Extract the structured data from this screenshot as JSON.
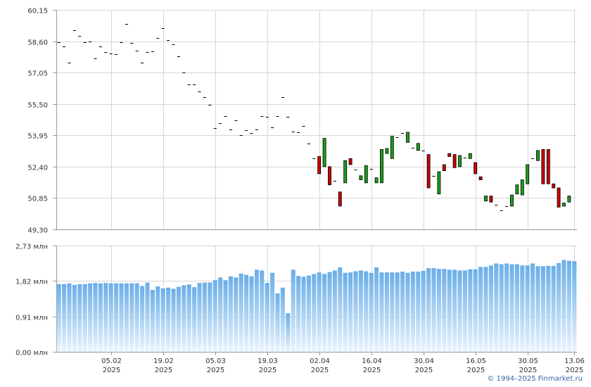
{
  "copyright": "© 1994–2025 Finmarket.ru",
  "chart_data": [
    {
      "type": "candlestick",
      "panel": "price",
      "title": "",
      "ylim": [
        49.3,
        60.15
      ],
      "y_ticks": [
        "60,15",
        "58,60",
        "57,05",
        "55,50",
        "53,95",
        "52,40",
        "50,85",
        "49,30"
      ],
      "y_tick_values": [
        60.15,
        58.6,
        57.05,
        55.5,
        53.95,
        52.4,
        50.85,
        49.3
      ],
      "grid": true,
      "colors": {
        "up": "#1a9e1a",
        "down": "#cc0000",
        "flat": "#000000"
      },
      "candles": [
        {
          "o": 58.55,
          "c": 58.55
        },
        {
          "o": 58.35,
          "c": 58.35
        },
        {
          "o": 57.55,
          "c": 57.55
        },
        {
          "o": 59.15,
          "c": 59.15
        },
        {
          "o": 58.85,
          "c": 58.85
        },
        {
          "o": 58.55,
          "c": 58.55
        },
        {
          "o": 58.6,
          "c": 58.6
        },
        {
          "o": 57.75,
          "c": 57.75
        },
        {
          "o": 58.35,
          "c": 58.35
        },
        {
          "o": 58.05,
          "c": 58.05
        },
        {
          "o": 58.0,
          "c": 58.0
        },
        {
          "o": 57.95,
          "c": 57.95
        },
        {
          "o": 58.55,
          "c": 58.55
        },
        {
          "o": 59.45,
          "c": 59.45
        },
        {
          "o": 58.5,
          "c": 58.5
        },
        {
          "o": 58.15,
          "c": 58.15
        },
        {
          "o": 57.55,
          "c": 57.55
        },
        {
          "o": 58.05,
          "c": 58.05
        },
        {
          "o": 58.1,
          "c": 58.1
        },
        {
          "o": 58.75,
          "c": 58.75
        },
        {
          "o": 59.25,
          "c": 59.25
        },
        {
          "o": 58.65,
          "c": 58.65
        },
        {
          "o": 58.45,
          "c": 58.45
        },
        {
          "o": 57.85,
          "c": 57.85
        },
        {
          "o": 57.05,
          "c": 57.05
        },
        {
          "o": 56.45,
          "c": 56.45
        },
        {
          "o": 56.45,
          "c": 56.45
        },
        {
          "o": 56.1,
          "c": 56.1
        },
        {
          "o": 55.85,
          "c": 55.85
        },
        {
          "o": 55.45,
          "c": 55.45
        },
        {
          "o": 54.3,
          "c": 54.3
        },
        {
          "o": 54.55,
          "c": 54.55
        },
        {
          "o": 54.9,
          "c": 54.9
        },
        {
          "o": 54.25,
          "c": 54.25
        },
        {
          "o": 54.7,
          "c": 54.7
        },
        {
          "o": 53.95,
          "c": 53.95
        },
        {
          "o": 54.2,
          "c": 54.2
        },
        {
          "o": 54.05,
          "c": 54.05
        },
        {
          "o": 54.25,
          "c": 54.25
        },
        {
          "o": 54.9,
          "c": 54.9
        },
        {
          "o": 54.85,
          "c": 54.85
        },
        {
          "o": 54.35,
          "c": 54.35
        },
        {
          "o": 54.9,
          "c": 54.9
        },
        {
          "o": 55.85,
          "c": 55.85
        },
        {
          "o": 54.85,
          "c": 54.85
        },
        {
          "o": 54.15,
          "c": 54.15
        },
        {
          "o": 54.1,
          "c": 54.1
        },
        {
          "o": 54.4,
          "c": 54.4
        },
        {
          "o": 53.55,
          "c": 53.55
        },
        {
          "o": 52.8,
          "c": 52.8
        },
        {
          "o": 52.9,
          "c": 52.05
        },
        {
          "o": 52.4,
          "c": 53.8
        },
        {
          "o": 52.4,
          "c": 51.5
        },
        {
          "o": 51.7,
          "c": 51.7
        },
        {
          "o": 51.15,
          "c": 50.45
        },
        {
          "o": 51.6,
          "c": 52.7
        },
        {
          "o": 52.8,
          "c": 52.5
        },
        {
          "o": 52.25,
          "c": 52.25
        },
        {
          "o": 51.75,
          "c": 51.95
        },
        {
          "o": 51.6,
          "c": 52.45
        },
        {
          "o": 52.3,
          "c": 52.3
        },
        {
          "o": 51.6,
          "c": 51.85
        },
        {
          "o": 51.6,
          "c": 53.25
        },
        {
          "o": 53.05,
          "c": 53.3
        },
        {
          "o": 52.8,
          "c": 53.9
        },
        {
          "o": 53.85,
          "c": 53.85
        },
        {
          "o": 54.05,
          "c": 54.05
        },
        {
          "o": 53.6,
          "c": 54.1
        },
        {
          "o": 53.35,
          "c": 53.35
        },
        {
          "o": 53.2,
          "c": 53.55
        },
        {
          "o": 53.2,
          "c": 53.2
        },
        {
          "o": 53.0,
          "c": 51.35
        },
        {
          "o": 51.95,
          "c": 51.95
        },
        {
          "o": 51.05,
          "c": 52.15
        },
        {
          "o": 52.5,
          "c": 52.2
        },
        {
          "o": 53.05,
          "c": 52.9
        },
        {
          "o": 53.0,
          "c": 52.35
        },
        {
          "o": 52.4,
          "c": 52.95
        },
        {
          "o": 52.85,
          "c": 52.85
        },
        {
          "o": 52.8,
          "c": 53.05
        },
        {
          "o": 52.6,
          "c": 52.05
        },
        {
          "o": 51.9,
          "c": 51.75
        },
        {
          "o": 50.7,
          "c": 50.95
        },
        {
          "o": 50.95,
          "c": 50.65
        },
        {
          "o": 50.5,
          "c": 50.5
        },
        {
          "o": 50.25,
          "c": 50.25
        },
        {
          "o": 50.45,
          "c": 50.45
        },
        {
          "o": 50.45,
          "c": 51.0
        },
        {
          "o": 51.05,
          "c": 51.5
        },
        {
          "o": 51.0,
          "c": 51.75
        },
        {
          "o": 51.55,
          "c": 52.5
        },
        {
          "o": 52.8,
          "c": 52.8
        },
        {
          "o": 52.7,
          "c": 53.2
        },
        {
          "o": 53.25,
          "c": 51.55
        },
        {
          "o": 53.25,
          "c": 51.55
        },
        {
          "o": 51.55,
          "c": 51.35
        },
        {
          "o": 51.35,
          "c": 50.4
        },
        {
          "o": 50.45,
          "c": 50.6
        },
        {
          "o": 50.65,
          "c": 50.95
        }
      ]
    },
    {
      "type": "bar",
      "panel": "volume",
      "title": "",
      "ylim": [
        0,
        2.73
      ],
      "y_ticks": [
        "2,73 млн",
        "1,82 млн",
        "0,91 млн",
        "0,00 млн"
      ],
      "y_tick_values": [
        2.73,
        1.82,
        0.91,
        0.0
      ],
      "x_ticks": [
        {
          "day": "05.02",
          "year": "2025",
          "index": 10
        },
        {
          "day": "19.02",
          "year": "2025",
          "index": 20
        },
        {
          "day": "05.03",
          "year": "2025",
          "index": 30
        },
        {
          "day": "19.03",
          "year": "2025",
          "index": 40
        },
        {
          "day": "02.04",
          "year": "2025",
          "index": 50
        },
        {
          "day": "16.04",
          "year": "2025",
          "index": 60
        },
        {
          "day": "30.04",
          "year": "2025",
          "index": 70
        },
        {
          "day": "16.05",
          "year": "2025",
          "index": 80
        },
        {
          "day": "30.05",
          "year": "2025",
          "index": 90
        },
        {
          "day": "13.06",
          "year": "2025",
          "index": 99
        }
      ],
      "grid": true,
      "colors": {
        "bar_top": "#6aaee8",
        "bar_bottom": "#eaf4fd"
      },
      "values": [
        1.74,
        1.74,
        1.76,
        1.72,
        1.74,
        1.74,
        1.76,
        1.77,
        1.76,
        1.77,
        1.76,
        1.76,
        1.76,
        1.76,
        1.76,
        1.76,
        1.69,
        1.78,
        1.59,
        1.68,
        1.63,
        1.65,
        1.62,
        1.67,
        1.71,
        1.73,
        1.66,
        1.77,
        1.78,
        1.78,
        1.84,
        1.91,
        1.84,
        1.94,
        1.91,
        2.01,
        1.98,
        1.94,
        2.11,
        2.09,
        1.77,
        2.03,
        1.5,
        1.65,
        0.99,
        2.11,
        1.95,
        1.93,
        1.96,
        2.0,
        2.04,
        2.0,
        2.05,
        2.09,
        2.17,
        2.03,
        2.04,
        2.07,
        2.09,
        2.07,
        2.03,
        2.17,
        2.04,
        2.04,
        2.04,
        2.04,
        2.06,
        2.03,
        2.06,
        2.06,
        2.08,
        2.15,
        2.15,
        2.13,
        2.13,
        2.11,
        2.11,
        2.09,
        2.09,
        2.12,
        2.12,
        2.18,
        2.18,
        2.22,
        2.27,
        2.25,
        2.27,
        2.25,
        2.25,
        2.22,
        2.22,
        2.27,
        2.2,
        2.2,
        2.21,
        2.21,
        2.28,
        2.36,
        2.34,
        2.33
      ]
    }
  ]
}
